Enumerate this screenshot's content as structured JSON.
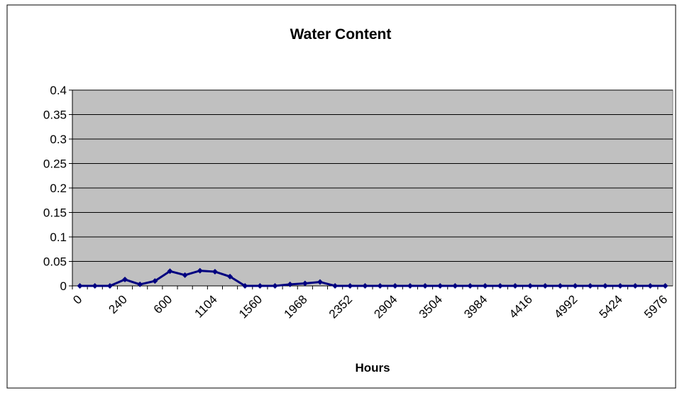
{
  "chart_data": {
    "type": "line",
    "title": "Water Content",
    "x_label": "Hours",
    "categories": [
      "0",
      null,
      null,
      "240",
      null,
      null,
      "600",
      null,
      null,
      "1104",
      null,
      null,
      "1560",
      null,
      null,
      "1968",
      null,
      null,
      "2352",
      null,
      null,
      "2904",
      null,
      null,
      "3504",
      null,
      null,
      "3984",
      null,
      null,
      "4416",
      null,
      null,
      "4992",
      null,
      null,
      "5424",
      null,
      null,
      "5976"
    ],
    "series": [
      {
        "name": "Water Content",
        "color": "#000080",
        "values": [
          0,
          0,
          0,
          0.013,
          0.003,
          0.01,
          0.03,
          0.022,
          0.031,
          0.029,
          0.019,
          0,
          0,
          0,
          0.003,
          0.005,
          0.008,
          0,
          0,
          0,
          0,
          0,
          0,
          0,
          0,
          0,
          0,
          0,
          0,
          0,
          0,
          0,
          0,
          0,
          0,
          0,
          0,
          0,
          0,
          0
        ]
      }
    ],
    "ylim": [
      0,
      0.4
    ],
    "yticks": [
      0,
      0.05,
      0.1,
      0.15,
      0.2,
      0.25,
      0.3,
      0.35,
      0.4
    ],
    "grid": true,
    "plot_background": "#c0c0c0"
  }
}
